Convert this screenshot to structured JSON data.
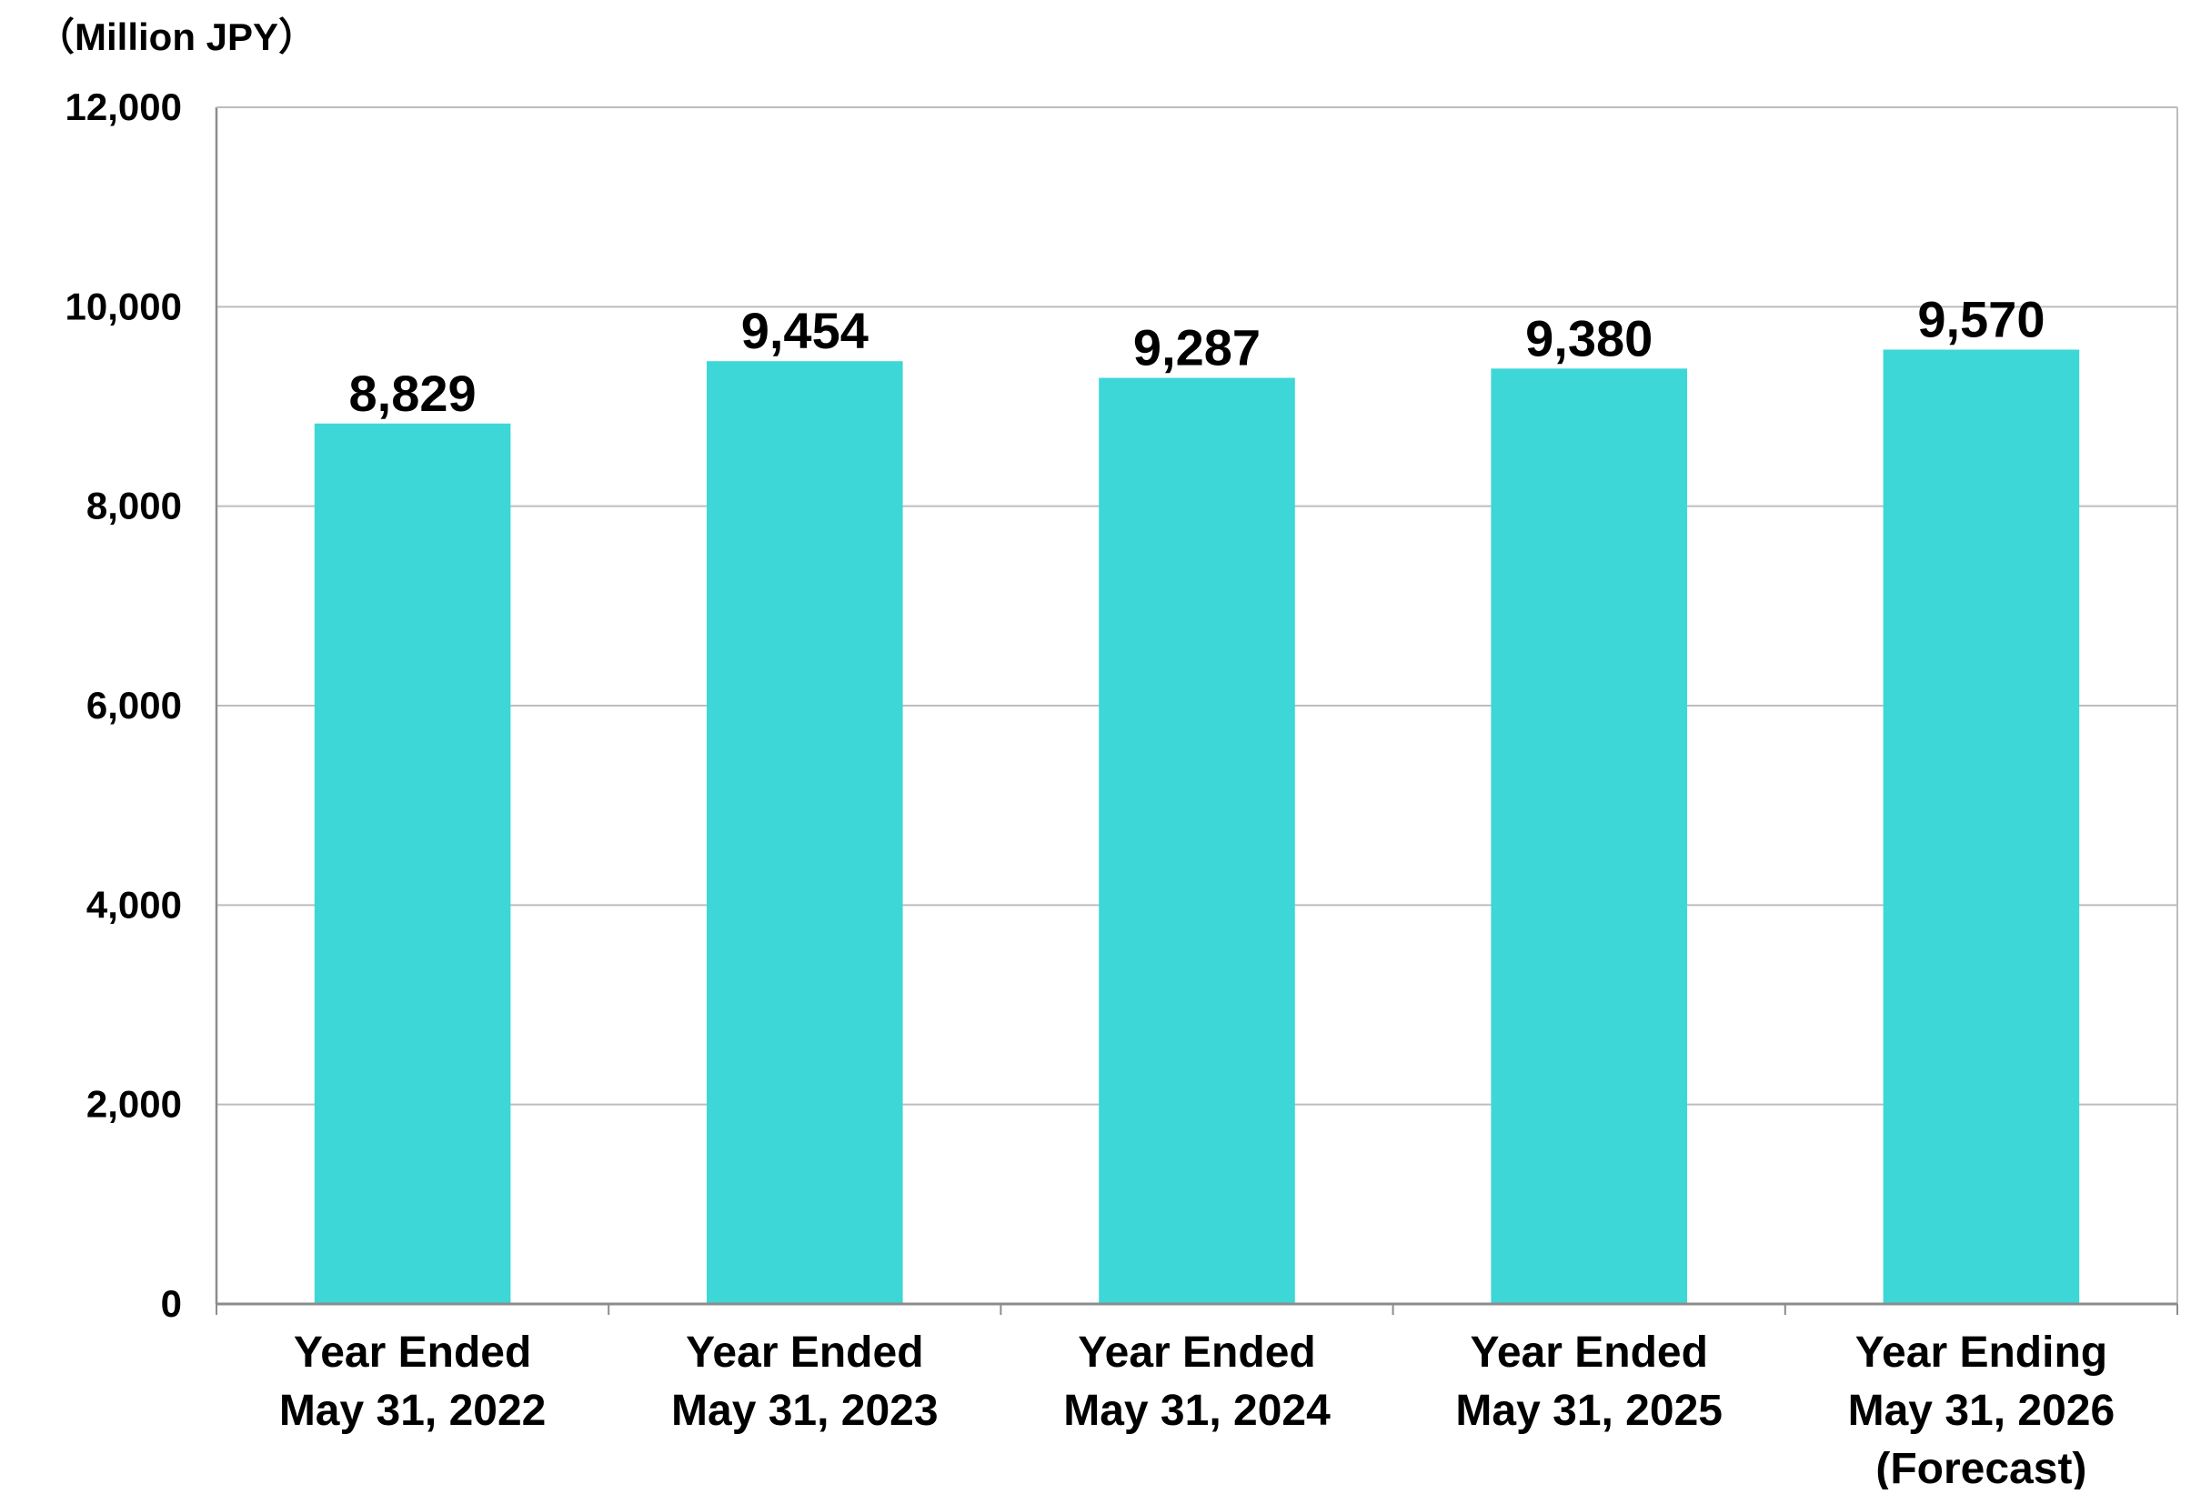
{
  "chart_data": {
    "type": "bar",
    "unit_label": "（Million JPY）",
    "categories": [
      [
        "Year Ended",
        "May 31, 2022"
      ],
      [
        "Year Ended",
        "May 31, 2023"
      ],
      [
        "Year Ended",
        "May 31, 2024"
      ],
      [
        "Year Ended",
        "May 31, 2025"
      ],
      [
        "Year Ending",
        "May 31, 2026",
        "(Forecast)"
      ]
    ],
    "values": [
      8829,
      9454,
      9287,
      9380,
      9570
    ],
    "data_labels": [
      "8,829",
      "9,454",
      "9,287",
      "9,380",
      "9,570"
    ],
    "ylim": [
      0,
      12000
    ],
    "yticks": [
      0,
      2000,
      4000,
      6000,
      8000,
      10000,
      12000
    ],
    "ytick_labels": [
      "0",
      "2,000",
      "4,000",
      "6,000",
      "8,000",
      "10,000",
      "12,000"
    ],
    "grid": true,
    "legend": "none",
    "colors": {
      "bar": "#3dd7d7",
      "grid": "#bdbdbd",
      "axis": "#8c8c8c"
    }
  }
}
